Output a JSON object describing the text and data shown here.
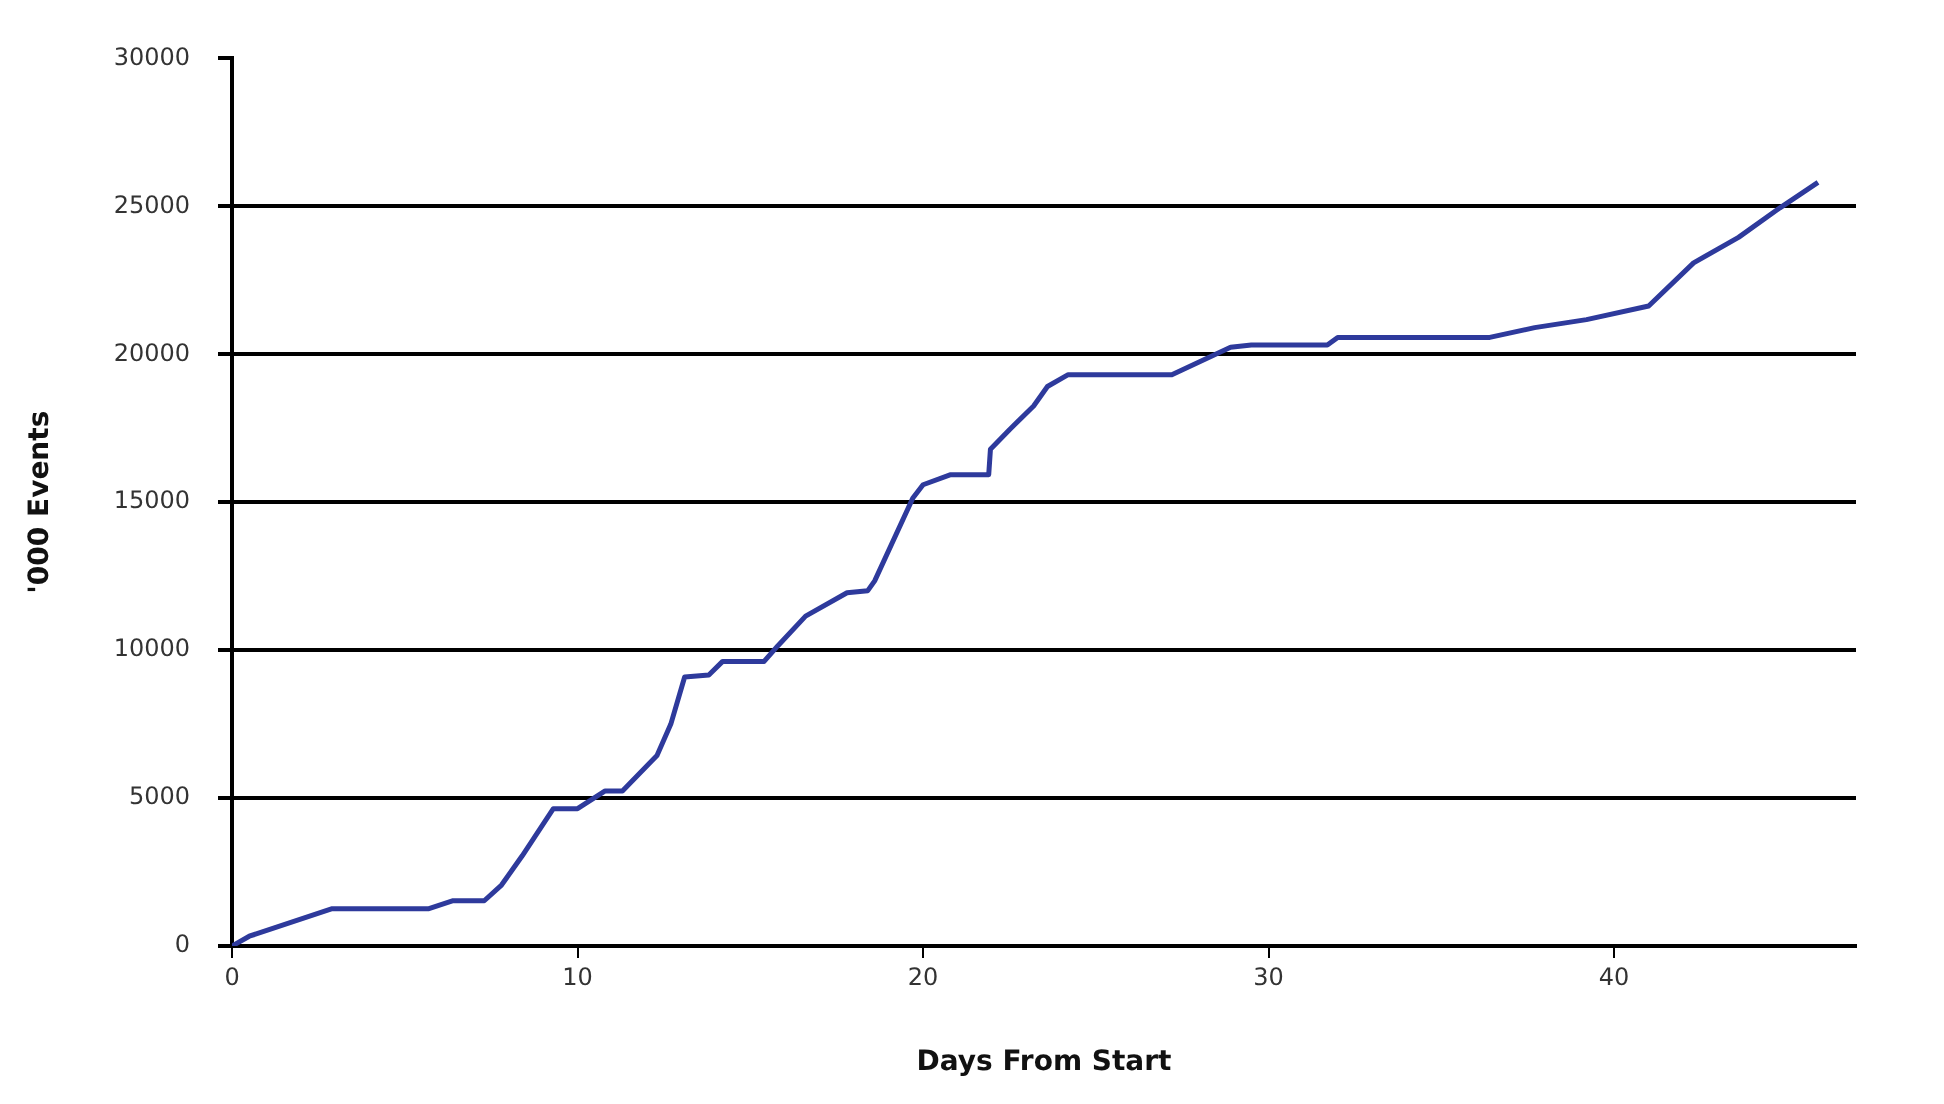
{
  "chart_data": {
    "type": "line",
    "xlabel": "Days From Start",
    "ylabel": "'000 Events",
    "x": [
      0,
      0.5,
      2.9,
      5.7,
      6.4,
      7.3,
      7.8,
      8.4,
      9.3,
      10.0,
      10.8,
      11.3,
      12.3,
      12.7,
      13.1,
      13.8,
      14.2,
      15.4,
      15.8,
      16.6,
      17.8,
      18.4,
      18.6,
      19.7,
      20.0,
      20.8,
      21.9,
      21.95,
      22.5,
      23.2,
      23.6,
      24.2,
      25.6,
      27.2,
      28.9,
      29.5,
      31.7,
      32.0,
      36.4,
      37.7,
      39.2,
      41.0,
      42.3,
      43.6,
      44.8,
      45.9
    ],
    "series": [
      {
        "color": "#2e3a9c",
        "values": [
          0,
          330,
          1260,
          1260,
          1530,
          1530,
          2060,
          3050,
          4640,
          4640,
          5240,
          5240,
          6440,
          7500,
          9090,
          9160,
          9620,
          9620,
          10150,
          11150,
          11940,
          12010,
          12340,
          15130,
          15590,
          15930,
          15930,
          16790,
          17450,
          18250,
          18910,
          19310,
          19310,
          19310,
          20240,
          20310,
          20310,
          20570,
          20570,
          20900,
          21170,
          21630,
          23090,
          23950,
          24950,
          25810
        ]
      }
    ],
    "xlim": [
      0,
      47
    ],
    "xticks": [
      0,
      10,
      20,
      30,
      40
    ],
    "ylim": [
      0,
      30000
    ],
    "yticks": [
      0,
      5000,
      10000,
      15000,
      20000,
      25000,
      30000
    ],
    "grid": "y",
    "legend": false,
    "marker": "none",
    "line_style": "solid"
  }
}
